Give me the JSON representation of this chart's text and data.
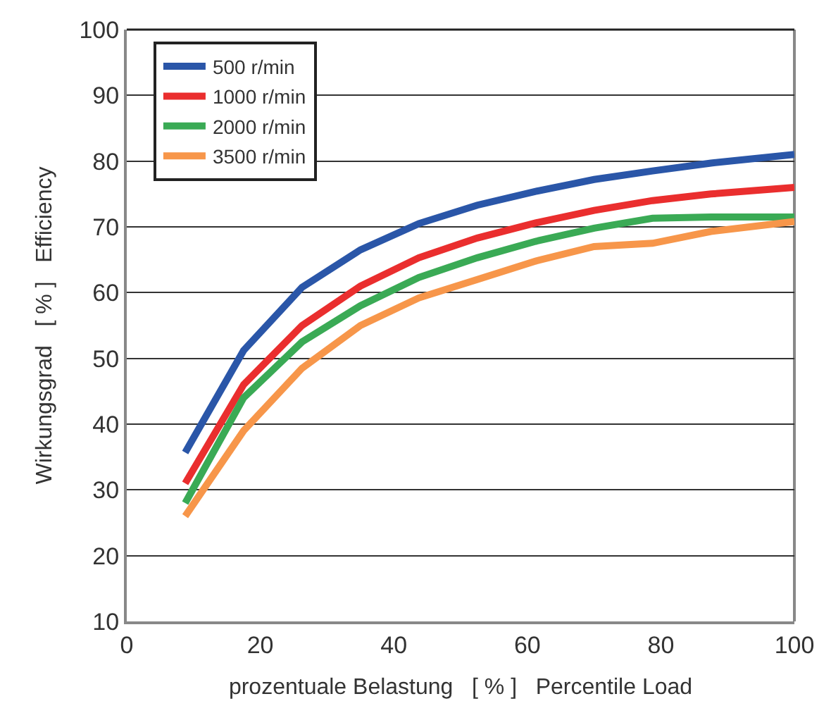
{
  "chart_data": {
    "type": "line",
    "xlabel": "prozentuale Belastung   [ % ]   Percentile Load",
    "ylabel": "Wirkungsgrad   [ % ]   Efficiency",
    "x": [
      8.75,
      17.5,
      26.25,
      35,
      43.75,
      52.5,
      61.25,
      70,
      78.75,
      87.5,
      100
    ],
    "xlim": [
      0,
      100
    ],
    "xticks": [
      0,
      20,
      40,
      60,
      80,
      100
    ],
    "ylim": [
      10,
      100
    ],
    "yticks": [
      10,
      20,
      30,
      40,
      50,
      60,
      70,
      80,
      90,
      100
    ],
    "grid": "y",
    "legend": "top left",
    "marker": "none",
    "line_style": "solid",
    "series": [
      {
        "name": "500 r/min",
        "color": "#2a56a8",
        "values": [
          35.7,
          51.2,
          60.8,
          66.5,
          70.5,
          73.3,
          75.4,
          77.2,
          78.5,
          79.7,
          81
        ]
      },
      {
        "name": "1000 r/min",
        "color": "#ea2e2e",
        "values": [
          31,
          46,
          55,
          61,
          65.3,
          68.3,
          70.6,
          72.5,
          74,
          75,
          76
        ]
      },
      {
        "name": "2000 r/min",
        "color": "#3aaa55",
        "values": [
          28,
          44,
          52.5,
          58,
          62.3,
          65.3,
          67.8,
          69.8,
          71.3,
          71.5,
          71.5
        ]
      },
      {
        "name": "3500 r/min",
        "color": "#f7964a",
        "values": [
          26,
          39,
          48.5,
          55,
          59.2,
          62,
          64.8,
          67,
          67.5,
          69.3,
          70.8
        ]
      }
    ]
  }
}
